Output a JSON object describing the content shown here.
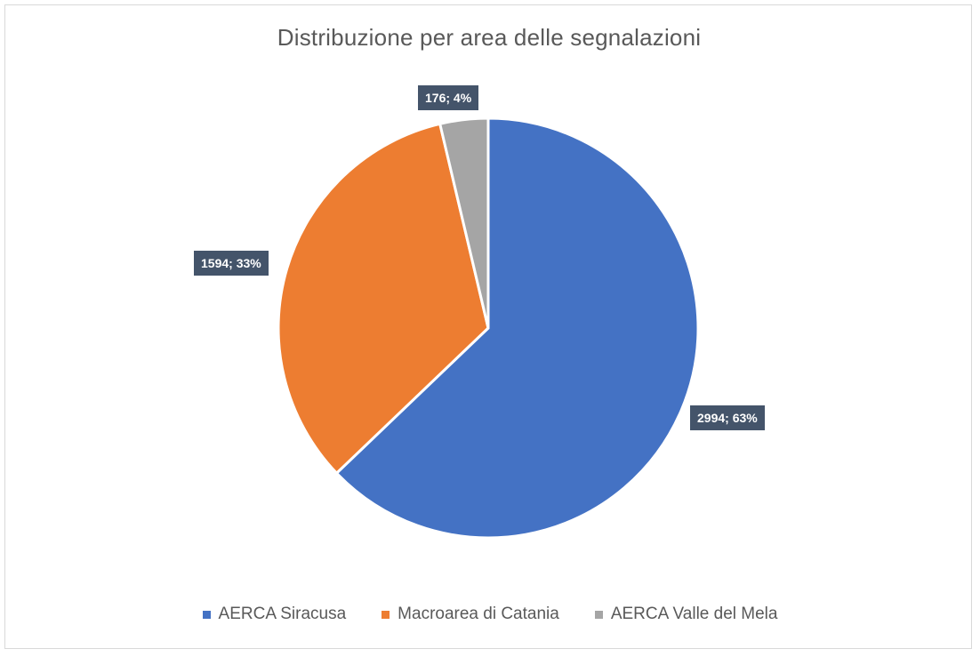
{
  "chart_data": {
    "type": "pie",
    "title": "Distribuzione per area delle segnalazioni",
    "categories": [
      "AERCA Siracusa",
      "Macroarea di Catania",
      "AERCA Valle del Mela"
    ],
    "values": [
      2994,
      1594,
      176
    ],
    "percentages": [
      "63%",
      "33%",
      "4%"
    ],
    "data_labels": [
      "2994; 63%",
      "1594; 33%",
      "176; 4%"
    ],
    "colors": [
      "#4472c4",
      "#ed7d31",
      "#a5a5a5"
    ],
    "legend_position": "bottom",
    "label_style": "dark-callout"
  }
}
